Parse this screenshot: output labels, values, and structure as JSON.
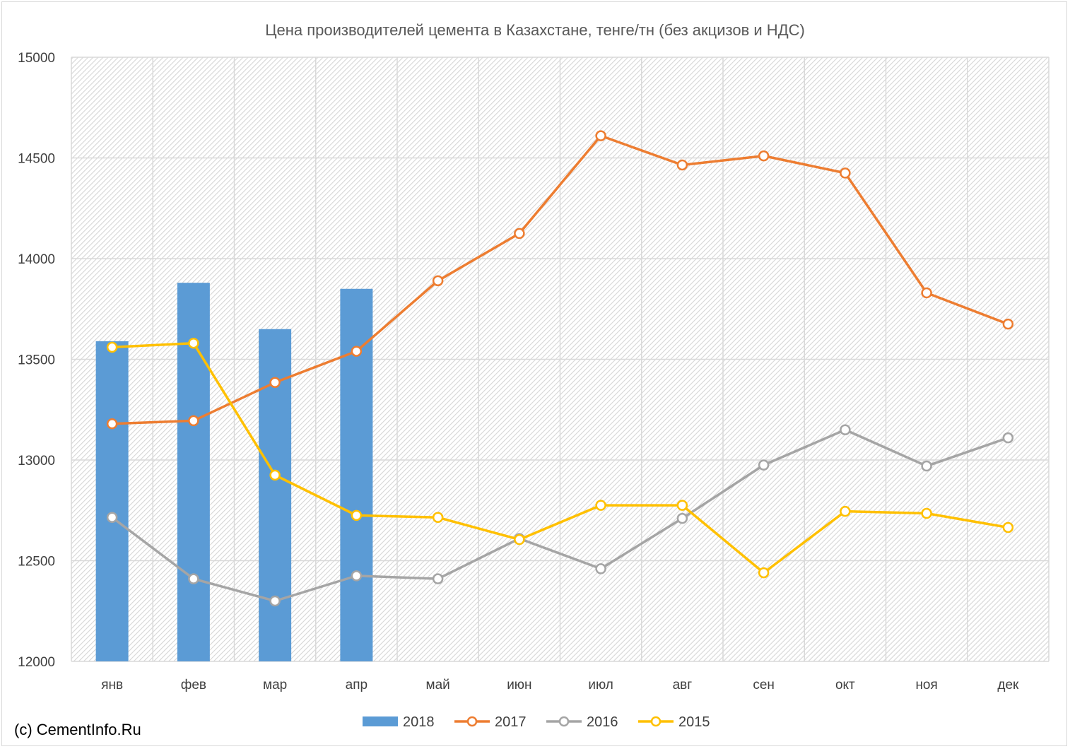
{
  "chart_data": {
    "type": "bar+line",
    "title": "Цена производителей цемента в Казахстане, тенге/тн (без акцизов и НДС)",
    "categories": [
      "янв",
      "фев",
      "мар",
      "апр",
      "май",
      "июн",
      "июл",
      "авг",
      "сен",
      "окт",
      "ноя",
      "дек"
    ],
    "ylim": [
      12000,
      15000
    ],
    "yticks": [
      12000,
      12500,
      13000,
      13500,
      14000,
      14500,
      15000
    ],
    "grid": true,
    "legend_position": "bottom",
    "series": [
      {
        "name": "2018",
        "kind": "bar",
        "color": "#5b9bd5",
        "values": [
          13590,
          13880,
          13650,
          13850,
          null,
          null,
          null,
          null,
          null,
          null,
          null,
          null
        ]
      },
      {
        "name": "2017",
        "kind": "line",
        "color": "#ed7d31",
        "values": [
          13180,
          13195,
          13385,
          13540,
          13890,
          14125,
          14610,
          14465,
          14510,
          14425,
          13830,
          13675
        ]
      },
      {
        "name": "2016",
        "kind": "line",
        "color": "#a5a5a5",
        "values": [
          12715,
          12410,
          12300,
          12425,
          12410,
          12610,
          12460,
          12710,
          12975,
          13150,
          12970,
          13110
        ]
      },
      {
        "name": "2015",
        "kind": "line",
        "color": "#ffc000",
        "values": [
          13560,
          13580,
          12925,
          12725,
          12715,
          12605,
          12775,
          12775,
          12440,
          12745,
          12735,
          12665
        ]
      }
    ]
  },
  "footer": {
    "copyright": "(c) CementInfo.Ru"
  }
}
